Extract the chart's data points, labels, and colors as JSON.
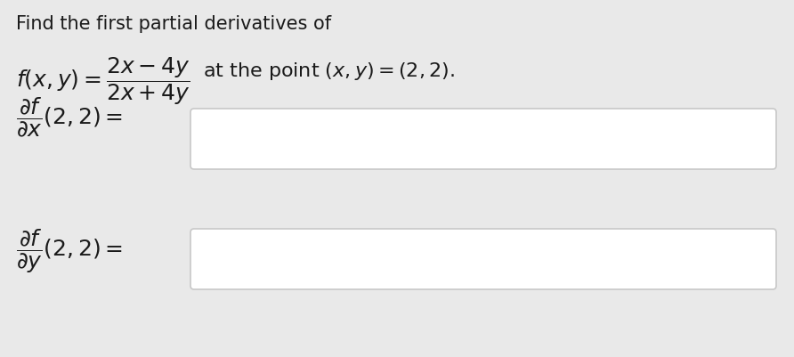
{
  "bg_color": "#e9e9e9",
  "white_box_color": "#ffffff",
  "text_color": "#1a1a1a",
  "box_edge_color": "#c8c8c8",
  "title_text": "Find the first partial derivatives of",
  "fig_width": 8.92,
  "fig_height": 4.02,
  "dpi": 100,
  "title_fontsize": 15,
  "formula_fontsize": 18,
  "label_fontsize": 16,
  "deriv_fontsize": 18
}
